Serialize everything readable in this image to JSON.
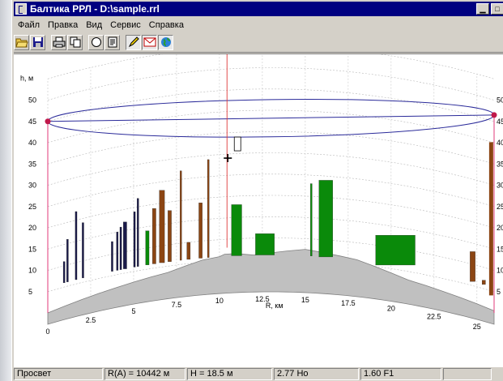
{
  "window": {
    "title": "Балтика РРЛ - D:\\sample.rrl",
    "controls": [
      "minimize",
      "maximize",
      "close"
    ]
  },
  "menu": [
    "Файл",
    "Правка",
    "Вид",
    "Сервис",
    "Справка"
  ],
  "toolbar": [
    {
      "icon": "open-folder-icon"
    },
    {
      "icon": "save-disk-icon"
    },
    {
      "icon": "print-icon"
    },
    {
      "icon": "copy-icon"
    },
    {
      "icon": "circle-icon"
    },
    {
      "icon": "report-icon"
    },
    {
      "icon": "pencil-icon",
      "pressed": true
    },
    {
      "icon": "envelope-icon",
      "pressed": true
    },
    {
      "icon": "globe-icon",
      "pressed": true
    }
  ],
  "chart_data": {
    "type": "area",
    "ylabel": "h, м",
    "xlabel": "R, км",
    "y_ticks": [
      5,
      10,
      15,
      20,
      25,
      30,
      35,
      40,
      45,
      50
    ],
    "x_ticks": [
      "0",
      "2.5",
      "5",
      "7.5",
      "10",
      "12.5",
      "15",
      "17.5",
      "20",
      "22.5",
      "25"
    ],
    "xlim": [
      0,
      26
    ],
    "ylim": [
      0,
      55
    ],
    "antenna_heights": {
      "left": 45,
      "right": 46.5
    },
    "cursor_r_km": 10.44,
    "terrain_profile": {
      "x": [
        0,
        1,
        2,
        3,
        4,
        5,
        6,
        7,
        8,
        9,
        10,
        10.3,
        11,
        12,
        13,
        14,
        15,
        16,
        17,
        18,
        19,
        20,
        21,
        22,
        23,
        24,
        25,
        26
      ],
      "y": [
        6,
        6.5,
        7,
        7.5,
        8,
        8.5,
        9,
        9.5,
        10.5,
        11.5,
        12,
        12.5,
        12.5,
        12,
        12.5,
        13,
        13.5,
        13,
        12.5,
        12,
        11,
        10,
        9,
        8.5,
        8,
        7.5,
        7,
        6.5
      ]
    },
    "colors": {
      "terrain": "#c0c0c0",
      "forest": "#0a8a0a",
      "building": "#8b4513",
      "mast": "#1a1a4a",
      "sight_line": "#2b2b9a",
      "cursor": "#e03a3a"
    }
  },
  "status": {
    "mode": "Просвет",
    "r": "R(A) =  10442 м",
    "h": "H =  18.5 м",
    "ho": "2.77 Ho",
    "f1": "1.60 F1"
  }
}
